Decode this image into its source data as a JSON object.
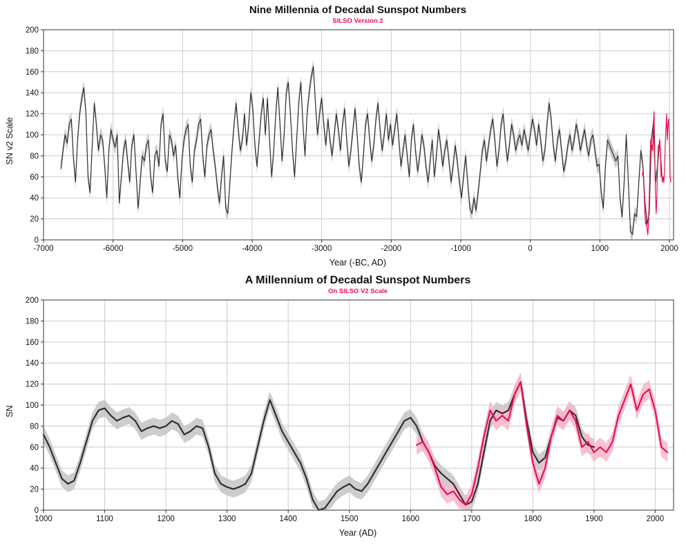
{
  "palette": {
    "accent_red": "#e8104e",
    "line_black": "#2e2e2e",
    "gray_band": "#c4c4c4",
    "pink_band": "#f8b7cb",
    "grid": "#cbcbcb"
  },
  "chart_data": [
    {
      "type": "line",
      "title": "Nine Millennia of Decadal Sunspot Numbers",
      "subtitle": "SILSO Version 2",
      "xlabel": "Year (-BC, AD)",
      "ylabel": "SN v2 Scale",
      "xlim": [
        -7000,
        2060
      ],
      "ylim": [
        0,
        200
      ],
      "xticks": [
        -7000,
        -6000,
        -5000,
        -4000,
        -3000,
        -2000,
        -1000,
        0,
        1000,
        2000
      ],
      "yticks": [
        0,
        20,
        40,
        60,
        80,
        100,
        120,
        140,
        160,
        180,
        200
      ],
      "grid": true,
      "legend": "none",
      "series": [
        {
          "name": "reconstructed decadal sunspot number (proxy, with uncertainty band)",
          "color": "#2e2e2e",
          "band": 7,
          "band_color": "#c4c4c4",
          "x0": -6750,
          "dx": 30,
          "values": [
            68,
            85,
            100,
            92,
            110,
            115,
            78,
            55,
            95,
            120,
            135,
            145,
            120,
            60,
            45,
            90,
            130,
            110,
            85,
            100,
            95,
            70,
            40,
            85,
            105,
            95,
            88,
            100,
            35,
            60,
            85,
            95,
            75,
            55,
            90,
            100,
            65,
            30,
            55,
            80,
            75,
            90,
            95,
            60,
            45,
            80,
            85,
            70,
            110,
            120,
            75,
            65,
            100,
            95,
            80,
            90,
            60,
            40,
            75,
            95,
            105,
            110,
            70,
            55,
            85,
            95,
            110,
            115,
            80,
            60,
            90,
            100,
            105,
            85,
            70,
            50,
            35,
            60,
            80,
            30,
            25,
            55,
            85,
            110,
            130,
            105,
            85,
            95,
            120,
            90,
            110,
            140,
            125,
            90,
            70,
            95,
            120,
            135,
            100,
            135,
            95,
            60,
            85,
            120,
            145,
            110,
            75,
            100,
            140,
            150,
            120,
            85,
            60,
            95,
            130,
            150,
            110,
            80,
            120,
            140,
            155,
            165,
            130,
            100,
            120,
            135,
            110,
            90,
            115,
            95,
            80,
            100,
            120,
            105,
            85,
            110,
            125,
            95,
            70,
            85,
            105,
            125,
            100,
            70,
            55,
            80,
            110,
            120,
            95,
            75,
            90,
            115,
            130,
            105,
            85,
            100,
            120,
            95,
            110,
            90,
            105,
            120,
            95,
            70,
            85,
            100,
            80,
            60,
            95,
            110,
            85,
            65,
            80,
            100,
            90,
            70,
            55,
            75,
            95,
            60,
            80,
            105,
            90,
            70,
            85,
            95,
            75,
            55,
            70,
            90,
            75,
            55,
            40,
            60,
            80,
            55,
            30,
            25,
            40,
            28,
            45,
            65,
            85,
            95,
            75,
            90,
            105,
            115,
            95,
            70,
            85,
            110,
            120,
            95,
            75,
            90,
            110,
            100,
            85,
            95,
            100,
            90,
            105,
            95,
            85,
            100,
            115,
            105,
            90,
            110,
            95,
            75,
            85,
            110,
            130,
            115,
            90,
            75,
            95,
            105,
            85,
            65,
            75,
            90,
            100,
            85,
            95,
            110,
            100,
            85,
            95,
            105,
            90,
            80,
            95,
            100,
            85,
            70,
            72,
            45,
            30,
            70,
            95,
            90,
            85,
            80,
            75,
            80,
            40,
            22,
            55,
            100,
            55,
            8,
            5,
            25,
            22,
            55,
            85,
            70,
            35,
            15,
            25,
            95,
            110,
            55,
            70,
            95,
            62
          ]
        },
        {
          "name": "observed sunspot number (SILSO v2)",
          "color": "#e8104e",
          "band": 4,
          "band_color": "#f8b7cb",
          "x0": 1610,
          "dx": 10,
          "values": [
            62,
            65,
            55,
            40,
            22,
            15,
            18,
            10,
            5,
            15,
            40,
            70,
            95,
            85,
            90,
            85,
            110,
            122,
            80,
            45,
            25,
            40,
            70,
            90,
            85,
            95,
            85,
            60,
            65,
            55,
            60,
            55,
            65,
            90,
            105,
            120,
            95,
            110,
            115,
            95,
            60,
            55
          ]
        }
      ]
    },
    {
      "type": "line",
      "title": "A Millennium of Decadal Sunspot Numbers",
      "subtitle": "On SILSO V2 Scale",
      "xlabel": "Year (AD)",
      "ylabel": "SN",
      "xlim": [
        1000,
        2030
      ],
      "ylim": [
        0,
        200
      ],
      "xticks": [
        1000,
        1100,
        1200,
        1300,
        1400,
        1500,
        1600,
        1700,
        1800,
        1900,
        2000
      ],
      "yticks": [
        0,
        20,
        40,
        60,
        80,
        100,
        120,
        140,
        160,
        180,
        200
      ],
      "grid": true,
      "legend": "none",
      "series": [
        {
          "name": "reconstructed decadal sunspot number (proxy, with uncertainty band)",
          "color": "#2e2e2e",
          "band": 8,
          "band_color": "#c4c4c4",
          "x0": 1000,
          "dx": 10,
          "values": [
            72,
            60,
            45,
            30,
            25,
            28,
            45,
            65,
            85,
            95,
            97,
            90,
            85,
            88,
            90,
            85,
            75,
            78,
            80,
            78,
            80,
            85,
            82,
            72,
            75,
            80,
            78,
            60,
            35,
            25,
            22,
            20,
            22,
            25,
            35,
            60,
            85,
            105,
            90,
            75,
            65,
            55,
            45,
            30,
            10,
            0,
            2,
            10,
            18,
            22,
            25,
            20,
            18,
            25,
            35,
            45,
            55,
            65,
            75,
            85,
            88,
            80,
            65,
            55,
            42,
            35,
            30,
            25,
            15,
            5,
            8,
            25,
            55,
            85,
            95,
            92,
            95,
            110,
            122,
            85,
            55,
            45,
            50,
            70,
            88,
            85,
            95,
            90,
            70,
            62,
            60
          ]
        },
        {
          "name": "observed sunspot number (SILSO v2, with uncertainty band)",
          "color": "#e8104e",
          "band": 9,
          "band_color": "#f8b7cb",
          "x0": 1610,
          "dx": 10,
          "values": [
            62,
            65,
            55,
            40,
            22,
            15,
            18,
            10,
            5,
            15,
            40,
            70,
            95,
            85,
            90,
            85,
            110,
            122,
            80,
            45,
            25,
            40,
            70,
            90,
            85,
            95,
            85,
            60,
            65,
            55,
            60,
            55,
            65,
            90,
            105,
            120,
            95,
            110,
            115,
            95,
            60,
            55
          ]
        }
      ]
    }
  ]
}
